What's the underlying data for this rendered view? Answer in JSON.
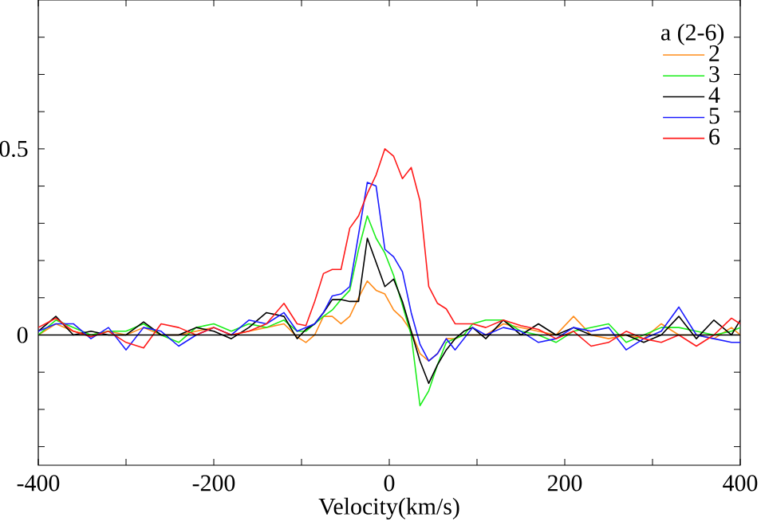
{
  "chart_data": {
    "type": "line",
    "xlabel": "Velocity(km/s)",
    "legend_title": "a (2-6)",
    "x": [
      -400,
      -380,
      -360,
      -340,
      -320,
      -300,
      -280,
      -260,
      -240,
      -220,
      -200,
      -180,
      -160,
      -140,
      -120,
      -105,
      -95,
      -85,
      -75,
      -65,
      -55,
      -45,
      -35,
      -25,
      -15,
      -5,
      5,
      15,
      25,
      35,
      45,
      55,
      65,
      75,
      85,
      95,
      110,
      130,
      150,
      170,
      190,
      210,
      230,
      250,
      270,
      290,
      310,
      330,
      350,
      370,
      390,
      400
    ],
    "series": [
      {
        "name": "2",
        "color": "#ff8c1a",
        "values": [
          0.0,
          0.03,
          0.01,
          0.0,
          0.01,
          0.0,
          0.02,
          0.0,
          0.0,
          0.01,
          0.02,
          0.0,
          0.01,
          0.02,
          0.03,
          -0.005,
          -0.02,
          0.0,
          0.05,
          0.05,
          0.03,
          0.05,
          0.1,
          0.145,
          0.12,
          0.11,
          0.067,
          0.045,
          0.01,
          -0.05,
          -0.07,
          -0.05,
          -0.01,
          -0.01,
          0.0,
          0.0,
          0.0,
          0.03,
          0.02,
          0.01,
          0.0,
          0.05,
          0.0,
          -0.01,
          0.0,
          -0.01,
          0.03,
          0.0,
          0.0,
          -0.01,
          0.02,
          0.0
        ]
      },
      {
        "name": "3",
        "color": "#1aee1a",
        "values": [
          0.0,
          0.04,
          0.02,
          0.0,
          0.01,
          0.01,
          0.03,
          0.0,
          -0.02,
          0.02,
          0.03,
          0.01,
          0.03,
          0.02,
          0.04,
          0.01,
          0.01,
          0.03,
          0.05,
          0.067,
          0.095,
          0.12,
          0.23,
          0.32,
          0.26,
          0.22,
          0.16,
          0.08,
          0.0,
          -0.19,
          -0.15,
          -0.08,
          -0.02,
          -0.01,
          0.0,
          0.03,
          0.04,
          0.04,
          0.01,
          0.0,
          -0.02,
          0.01,
          0.02,
          0.03,
          -0.02,
          0.0,
          0.02,
          0.02,
          0.01,
          0.0,
          0.01,
          0.02
        ]
      },
      {
        "name": "4",
        "color": "#000000",
        "values": [
          0.01,
          0.05,
          0.0,
          0.01,
          0.0,
          0.0,
          0.035,
          0.0,
          0.0,
          0.02,
          0.01,
          -0.01,
          0.02,
          0.06,
          0.05,
          -0.01,
          0.015,
          0.03,
          0.06,
          0.095,
          0.095,
          0.09,
          0.09,
          0.26,
          0.195,
          0.13,
          0.15,
          0.09,
          0.01,
          -0.07,
          -0.13,
          -0.08,
          -0.04,
          -0.01,
          0.01,
          0.02,
          -0.01,
          0.04,
          0.0,
          0.03,
          0.0,
          0.02,
          0.0,
          0.0,
          0.0,
          -0.02,
          0.0,
          0.05,
          -0.01,
          0.04,
          0.0,
          0.04
        ]
      },
      {
        "name": "5",
        "color": "#1a1aff",
        "values": [
          0.01,
          0.03,
          0.03,
          -0.01,
          0.02,
          -0.04,
          0.02,
          0.01,
          -0.03,
          0.0,
          0.02,
          0.0,
          0.04,
          0.03,
          0.06,
          0.01,
          0.02,
          0.03,
          0.06,
          0.105,
          0.11,
          0.13,
          0.27,
          0.41,
          0.4,
          0.23,
          0.21,
          0.17,
          0.06,
          -0.025,
          -0.07,
          -0.05,
          -0.01,
          -0.04,
          -0.01,
          0.02,
          0.0,
          0.02,
          0.01,
          -0.02,
          -0.01,
          0.02,
          0.01,
          0.02,
          -0.04,
          -0.01,
          0.01,
          0.075,
          0.0,
          -0.01,
          -0.02,
          -0.02
        ]
      },
      {
        "name": "6",
        "color": "#ff1a1a",
        "values": [
          0.02,
          0.045,
          0.01,
          -0.005,
          0.01,
          -0.02,
          -0.035,
          0.03,
          0.02,
          0.0,
          0.02,
          0.0,
          0.01,
          0.03,
          0.085,
          0.03,
          0.025,
          0.09,
          0.165,
          0.176,
          0.176,
          0.287,
          0.32,
          0.38,
          0.43,
          0.5,
          0.48,
          0.42,
          0.45,
          0.36,
          0.13,
          0.085,
          0.07,
          0.03,
          0.03,
          0.03,
          0.02,
          0.04,
          0.025,
          0.015,
          -0.01,
          0.01,
          -0.03,
          -0.02,
          0.01,
          -0.01,
          -0.02,
          0.0,
          -0.03,
          0.0,
          0.045,
          0.03
        ]
      }
    ],
    "xlim": [
      -400,
      400
    ],
    "xticks": [
      -400,
      {
        "value": -300,
        "label": null
      },
      -200,
      {
        "value": -100,
        "label": null
      },
      0,
      {
        "value": 100,
        "label": null
      },
      200,
      {
        "value": 300,
        "label": null
      },
      400
    ],
    "ylim": [
      -0.35,
      0.9
    ],
    "yticks": [
      {
        "value": -0.3,
        "label": null
      },
      {
        "value": -0.2,
        "label": null
      },
      {
        "value": -0.1,
        "label": null
      },
      0,
      {
        "value": 0.1,
        "label": null
      },
      {
        "value": 0.2,
        "label": null
      },
      {
        "value": 0.3,
        "label": null
      },
      {
        "value": 0.4,
        "label": null
      },
      0.5,
      {
        "value": 0.6,
        "label": null
      },
      {
        "value": 0.7,
        "label": null
      },
      {
        "value": 0.8,
        "label": null
      }
    ],
    "ref_lines": [
      {
        "axis": "y",
        "value": 0,
        "color": "#000000"
      }
    ],
    "legend": "top right",
    "grid": false,
    "marker": "none",
    "line_style": "solid"
  }
}
